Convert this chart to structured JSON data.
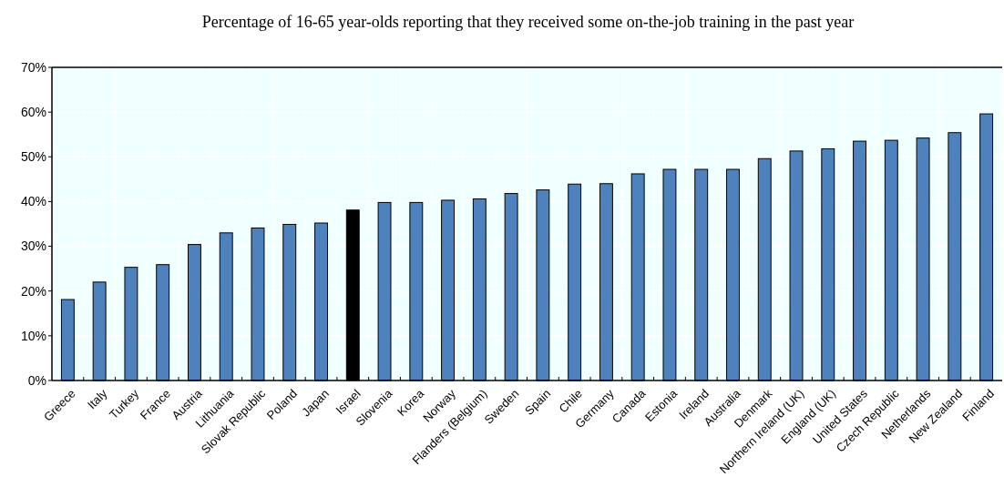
{
  "chart_data": {
    "type": "bar",
    "title": "Percentage of 16-65 year-olds reporting that they received some on-the-job training in the past year",
    "categories": [
      "Greece",
      "Italy",
      "Turkey",
      "France",
      "Austria",
      "Lithuania",
      "Slovak Republic",
      "Poland",
      "Japan",
      "Israel",
      "Slovenia",
      "Korea",
      "Norway",
      "Flanders (Belgium)",
      "Sweden",
      "Spain",
      "Chile",
      "Germany",
      "Canada",
      "Estonia",
      "Ireland",
      "Australia",
      "Denmark",
      "Northern Ireland (UK)",
      "England (UK)",
      "United States",
      "Czech Republic",
      "Netherlands",
      "New Zealand",
      "Finland"
    ],
    "values": [
      18.1,
      22.0,
      25.3,
      25.9,
      30.4,
      33.0,
      34.1,
      34.9,
      35.2,
      38.1,
      39.8,
      39.8,
      40.3,
      40.6,
      41.8,
      42.6,
      43.9,
      44.0,
      46.2,
      47.2,
      47.2,
      47.2,
      49.6,
      51.3,
      51.8,
      53.5,
      53.7,
      54.2,
      55.4,
      59.6
    ],
    "colors": [
      "#4f81bd",
      "#4f81bd",
      "#4f81bd",
      "#4f81bd",
      "#4f81bd",
      "#4f81bd",
      "#4f81bd",
      "#4f81bd",
      "#4f81bd",
      "#000000",
      "#4f81bd",
      "#4f81bd",
      "#4f81bd",
      "#4f81bd",
      "#4f81bd",
      "#4f81bd",
      "#4f81bd",
      "#4f81bd",
      "#4f81bd",
      "#4f81bd",
      "#4f81bd",
      "#4f81bd",
      "#4f81bd",
      "#4f81bd",
      "#4f81bd",
      "#4f81bd",
      "#4f81bd",
      "#4f81bd",
      "#4f81bd",
      "#4f81bd"
    ],
    "ylim": [
      0,
      70
    ],
    "yticks": [
      {
        "value": 0,
        "label": "0%"
      },
      {
        "value": 10,
        "label": "10%"
      },
      {
        "value": 20,
        "label": "20%"
      },
      {
        "value": 30,
        "label": "30%"
      },
      {
        "value": 40,
        "label": "40%"
      },
      {
        "value": 50,
        "label": "50%"
      },
      {
        "value": 60,
        "label": "60%"
      },
      {
        "value": 70,
        "label": "70%"
      }
    ],
    "grid": true
  }
}
